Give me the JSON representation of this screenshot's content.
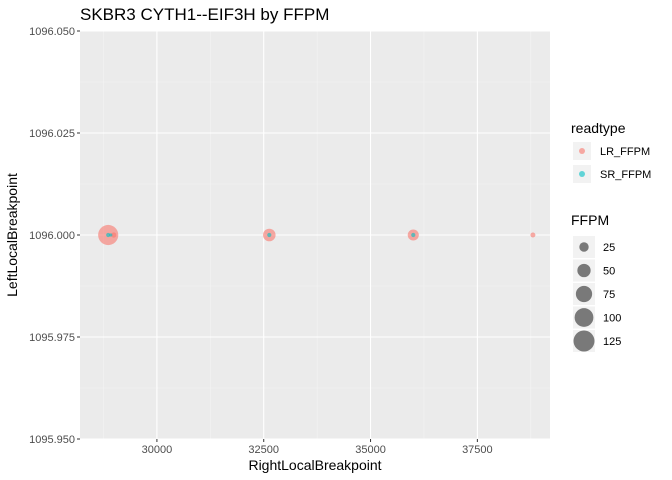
{
  "chart_data": {
    "type": "scatter",
    "title": "SKBR3 CYTH1--EIF3H by FFPM",
    "xlabel": "RightLocalBreakpoint",
    "ylabel": "LeftLocalBreakpoint",
    "xlim": [
      28200,
      39200
    ],
    "ylim": [
      1095.95,
      1096.05
    ],
    "x_ticks": [
      30000,
      32500,
      35000,
      37500
    ],
    "x_tick_labels": [
      "30000",
      "32500",
      "35000",
      "37500"
    ],
    "y_ticks": [
      1095.95,
      1095.975,
      1096.0,
      1096.025,
      1096.05
    ],
    "y_tick_labels": [
      "1095.950",
      "1095.975",
      "1096.000",
      "1096.025",
      "1096.050"
    ],
    "grid": true,
    "legend_position": "right",
    "color_legend": {
      "title": "readtype",
      "entries": [
        {
          "name": "LR_FFPM",
          "color": "#F8766D"
        },
        {
          "name": "SR_FFPM",
          "color": "#00BFC4"
        }
      ]
    },
    "size_legend": {
      "title": "FFPM",
      "breaks": [
        25,
        50,
        75,
        100,
        125
      ],
      "labels": [
        "25",
        "50",
        "75",
        "100",
        "125"
      ],
      "max_value": 125
    },
    "series": [
      {
        "name": "LR_FFPM",
        "color": "#F8766D",
        "points": [
          {
            "x": 28860,
            "y": 1096.0,
            "size": 115
          },
          {
            "x": 28990,
            "y": 1096.0,
            "size": 8
          },
          {
            "x": 32630,
            "y": 1096.0,
            "size": 45
          },
          {
            "x": 36000,
            "y": 1096.0,
            "size": 35
          },
          {
            "x": 38800,
            "y": 1096.0,
            "size": 7
          }
        ]
      },
      {
        "name": "SR_FFPM",
        "color": "#00BFC4",
        "points": [
          {
            "x": 28860,
            "y": 1096.0,
            "size": 5
          },
          {
            "x": 28920,
            "y": 1096.0,
            "size": 3
          },
          {
            "x": 32630,
            "y": 1096.0,
            "size": 5
          },
          {
            "x": 36000,
            "y": 1096.0,
            "size": 5
          }
        ]
      }
    ]
  }
}
